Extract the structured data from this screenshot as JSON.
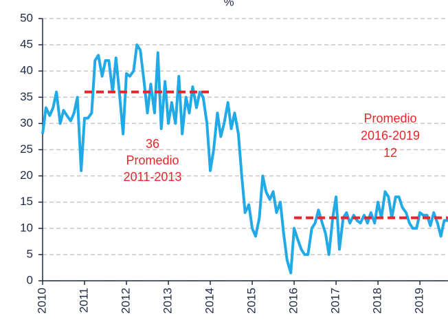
{
  "chart_data": {
    "type": "line",
    "subtitle": "%",
    "x": [
      2010.0,
      2010.08,
      2010.17,
      2010.25,
      2010.33,
      2010.42,
      2010.5,
      2010.58,
      2010.67,
      2010.75,
      2010.83,
      2010.92,
      2011.0,
      2011.08,
      2011.17,
      2011.25,
      2011.33,
      2011.42,
      2011.5,
      2011.58,
      2011.67,
      2011.75,
      2011.83,
      2011.92,
      2012.0,
      2012.08,
      2012.17,
      2012.25,
      2012.33,
      2012.42,
      2012.5,
      2012.58,
      2012.67,
      2012.75,
      2012.83,
      2012.92,
      2013.0,
      2013.08,
      2013.17,
      2013.25,
      2013.33,
      2013.42,
      2013.5,
      2013.58,
      2013.67,
      2013.75,
      2013.83,
      2013.92,
      2014.0,
      2014.08,
      2014.17,
      2014.25,
      2014.33,
      2014.42,
      2014.5,
      2014.58,
      2014.67,
      2014.75,
      2014.83,
      2014.92,
      2015.0,
      2015.08,
      2015.17,
      2015.25,
      2015.33,
      2015.42,
      2015.5,
      2015.58,
      2015.67,
      2015.75,
      2015.83,
      2015.92,
      2016.0,
      2016.08,
      2016.17,
      2016.25,
      2016.33,
      2016.42,
      2016.5,
      2016.58,
      2016.67,
      2016.75,
      2016.83,
      2016.92,
      2017.0,
      2017.08,
      2017.17,
      2017.25,
      2017.33,
      2017.42,
      2017.5,
      2017.58,
      2017.67,
      2017.75,
      2017.83,
      2017.92,
      2018.0,
      2018.08,
      2018.17,
      2018.25,
      2018.33,
      2018.42,
      2018.5,
      2018.58,
      2018.67,
      2018.75,
      2018.83,
      2018.92,
      2019.0,
      2019.08,
      2019.17,
      2019.25,
      2019.33,
      2019.42,
      2019.5,
      2019.58,
      2019.67
    ],
    "values": [
      28,
      33,
      31.5,
      33,
      36,
      30,
      32.5,
      31.5,
      30.5,
      32,
      35,
      21,
      31,
      31,
      32,
      42,
      43,
      39,
      42,
      42,
      36,
      42.5,
      36,
      28,
      39.5,
      39,
      40,
      45,
      44,
      38,
      32,
      37.5,
      32,
      43.5,
      29,
      38,
      30,
      34,
      30,
      39,
      28,
      35,
      32,
      37,
      33,
      36,
      35,
      30,
      21,
      25,
      32,
      27.5,
      30,
      34,
      29,
      32,
      28,
      20,
      13,
      14.5,
      10,
      8.5,
      12,
      20,
      17,
      15.5,
      17,
      13,
      15,
      9,
      4,
      1.5,
      10,
      8,
      6,
      5,
      5,
      10,
      11,
      13.5,
      11,
      9,
      5,
      12,
      16,
      6,
      12,
      13,
      11,
      12.5,
      11.5,
      11,
      12.5,
      11,
      13,
      11,
      15,
      12,
      17,
      16,
      12,
      16,
      16,
      14,
      13,
      11,
      10,
      10,
      13,
      12.5,
      12.5,
      10.5,
      13,
      11,
      8.5,
      11.5,
      11.5
    ],
    "color": "#22aae6",
    "xlim": [
      2010,
      2019.67
    ],
    "xticks": [
      2010,
      2011,
      2012,
      2013,
      2014,
      2015,
      2016,
      2017,
      2018,
      2019
    ],
    "ylim": [
      0,
      50
    ],
    "yticks": [
      0,
      5,
      10,
      15,
      20,
      25,
      30,
      35,
      40,
      45,
      50
    ],
    "grid": true,
    "reference_lines": [
      {
        "value": 36,
        "x": [
          2011,
          2014
        ],
        "color": "#e8262a",
        "label": [
          "36",
          "Promedio",
          "2011-2013"
        ]
      },
      {
        "value": 12,
        "x": [
          2016,
          2019.67
        ],
        "color": "#e8262a",
        "label": [
          "Promedio",
          "2016-2019",
          "12"
        ]
      }
    ]
  }
}
